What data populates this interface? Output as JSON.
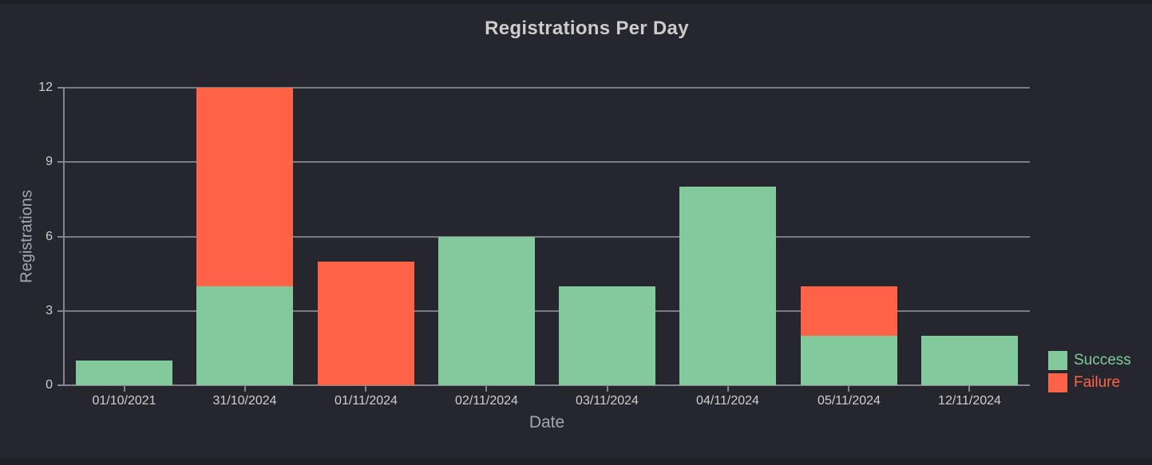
{
  "title": "Registrations Per Day",
  "chart_data": {
    "type": "bar",
    "stacked": true,
    "title": "Registrations Per Day",
    "xlabel": "Date",
    "ylabel": "Registrations",
    "categories": [
      "01/10/2021",
      "31/10/2024",
      "01/11/2024",
      "02/11/2024",
      "03/11/2024",
      "04/11/2024",
      "05/11/2024",
      "12/11/2024"
    ],
    "series": [
      {
        "name": "Success",
        "color": "#82c99b",
        "values": [
          1,
          4,
          0,
          6,
          4,
          8,
          2,
          2
        ]
      },
      {
        "name": "Failure",
        "color": "#ff6347",
        "values": [
          0,
          8,
          5,
          0,
          0,
          0,
          2,
          0
        ]
      }
    ],
    "totals": [
      1,
      12,
      5,
      6,
      4,
      8,
      4,
      2
    ],
    "yticks": [
      0,
      3,
      6,
      9,
      12
    ],
    "ylim": [
      0,
      12
    ],
    "grid": true,
    "legend_position": "right-bottom",
    "legend_entries": [
      "Success",
      "Failure"
    ]
  },
  "colors": {
    "background": "#26262e",
    "page_edge": "#1e1e25",
    "gridline": "#7a7a82",
    "axis": "#85858d",
    "tick_label": "#cfcfcf",
    "axis_title": "#a6a6ae",
    "title_text": "#cccccc",
    "success": "#82c99b",
    "failure": "#ff6347"
  }
}
